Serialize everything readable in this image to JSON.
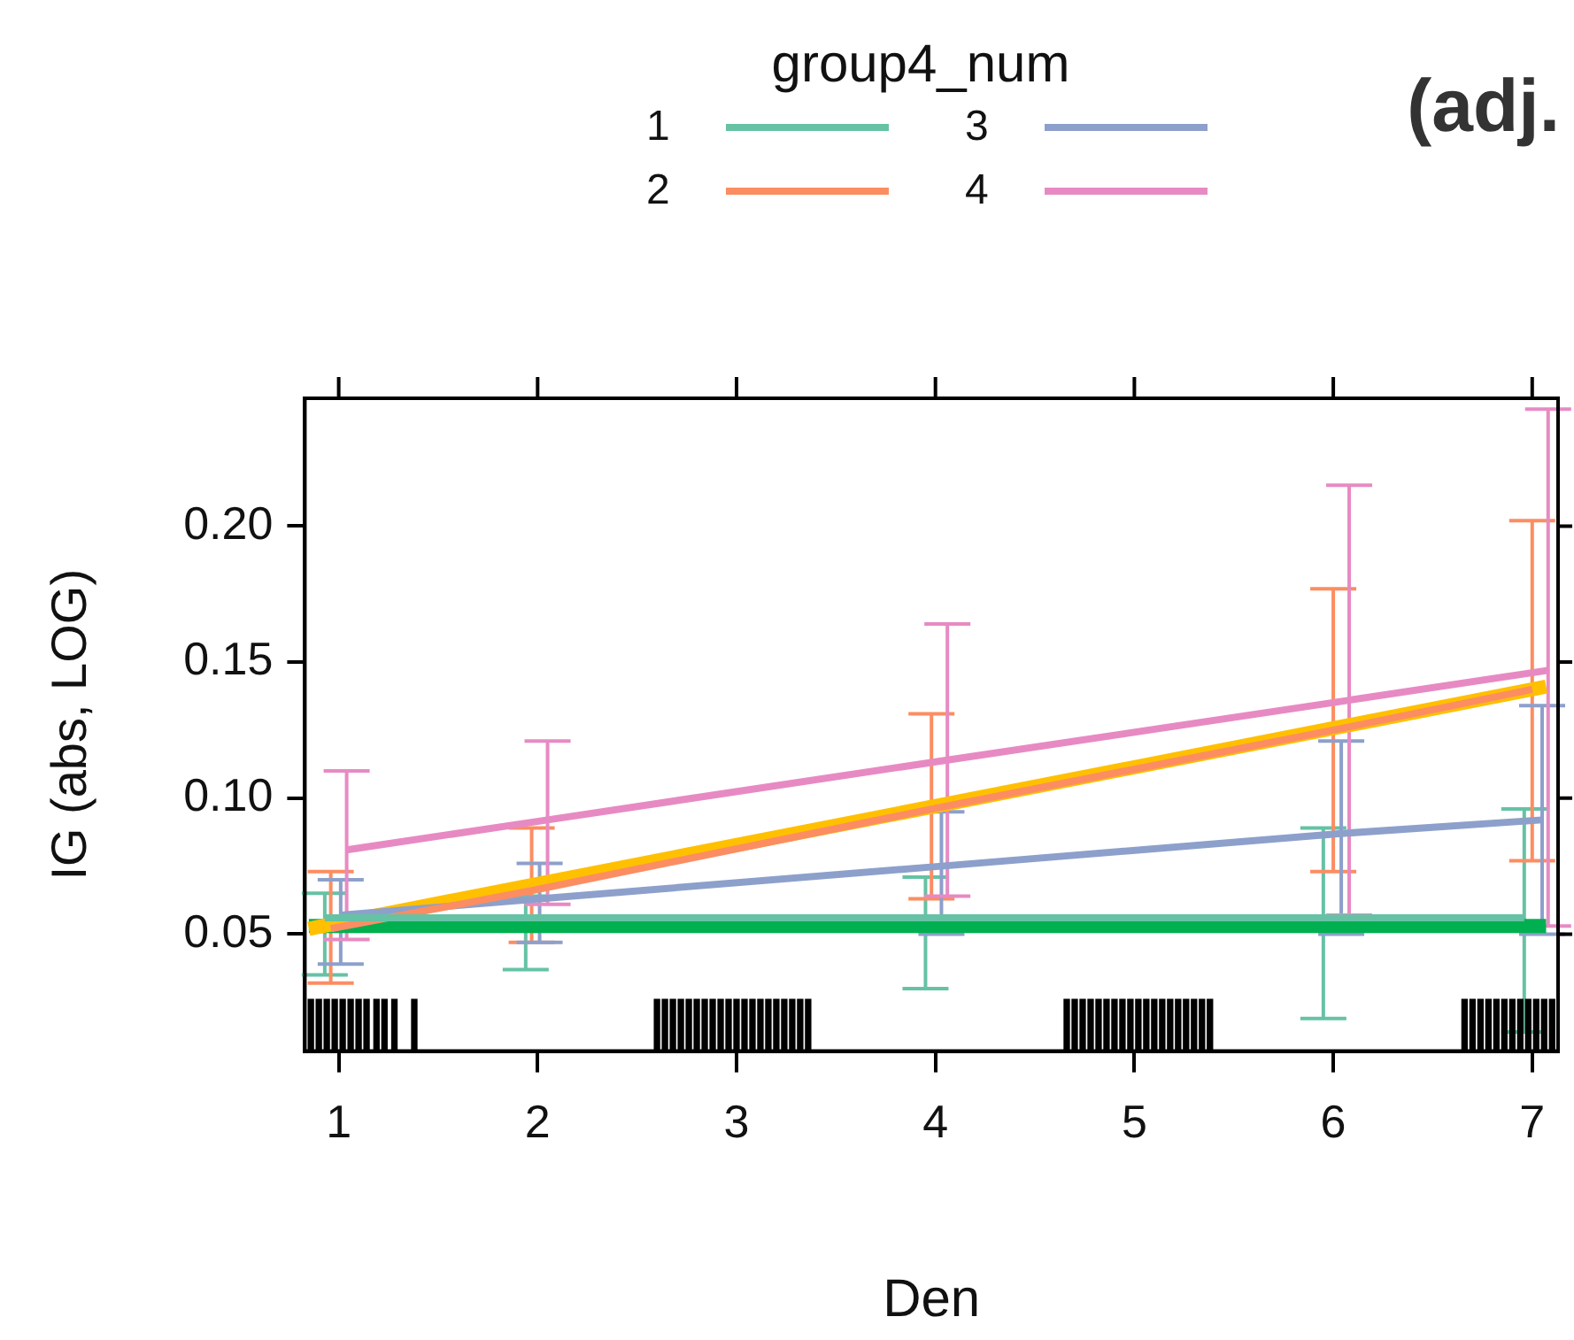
{
  "chart_data": {
    "type": "line",
    "xlabel": "Den",
    "ylabel": "IG (abs, LOG)",
    "legend_title": "group4_num",
    "legend": "top",
    "marker": "none",
    "annotations": [
      "(adj."
    ],
    "xlim": [
      0.83,
      7.13
    ],
    "xticks": [
      1,
      2,
      3,
      4,
      5,
      6,
      7
    ],
    "ylim": [
      0.007,
      0.247
    ],
    "yticks": [
      0.05,
      {
        "value": 0.1,
        "label": "0.10"
      },
      0.15,
      {
        "value": 0.2,
        "label": "0.20"
      }
    ],
    "series": [
      {
        "type": "line",
        "x": [
          0.85,
          7.07
        ],
        "values": [
          0.052,
          0.141
        ],
        "color": "#ffc000"
      },
      {
        "type": "line",
        "x": [
          0.85,
          7.07
        ],
        "values": [
          0.053,
          0.053
        ],
        "color": "#00b050"
      },
      {
        "type": "line",
        "name": "1",
        "color": "#66c2a5",
        "x": [
          0.93,
          1.94,
          3.95,
          5.95,
          6.96
        ],
        "values": [
          0.056,
          0.056,
          0.056,
          0.056,
          0.056
        ],
        "errors": [
          [
            0.035,
            0.065
          ],
          [
            0.037,
            0.064
          ],
          [
            0.03,
            0.071
          ],
          [
            0.019,
            0.089
          ],
          [
            0.014,
            0.096
          ]
        ]
      },
      {
        "type": "line",
        "name": "2",
        "color": "#fc8d62",
        "x": [
          0.96,
          1.97,
          3.98,
          6.0,
          7.0
        ],
        "values": [
          0.052,
          0.066,
          0.096,
          0.125,
          0.14
        ],
        "errors": [
          [
            0.032,
            0.073
          ],
          [
            0.047,
            0.089
          ],
          [
            0.063,
            0.131
          ],
          [
            0.073,
            0.177
          ],
          [
            0.077,
            0.202
          ]
        ]
      },
      {
        "type": "line",
        "name": "3",
        "color": "#8da0cb",
        "x": [
          1.01,
          2.01,
          4.03,
          6.04,
          7.05
        ],
        "values": [
          0.057,
          0.063,
          0.075,
          0.087,
          0.092
        ],
        "errors": [
          [
            0.039,
            0.07
          ],
          [
            0.047,
            0.076
          ],
          [
            0.05,
            0.095
          ],
          [
            0.05,
            0.121
          ],
          [
            0.05,
            0.134
          ]
        ]
      },
      {
        "type": "line",
        "name": "4",
        "color": "#e78ac3",
        "x": [
          1.04,
          2.05,
          4.06,
          6.08,
          7.08
        ],
        "values": [
          0.081,
          0.092,
          0.114,
          0.136,
          0.147
        ],
        "errors": [
          [
            0.048,
            0.11
          ],
          [
            0.061,
            0.121
          ],
          [
            0.064,
            0.164
          ],
          [
            0.057,
            0.215
          ],
          [
            0.053,
            0.243
          ]
        ]
      },
      {
        "type": "bar",
        "color": "#000000",
        "x": [
          0.86,
          0.9,
          0.94,
          0.98,
          1.02,
          1.06,
          1.1,
          1.14,
          1.19,
          1.23,
          1.28,
          1.38,
          2.6,
          2.64,
          2.68,
          2.72,
          2.76,
          2.8,
          2.84,
          2.88,
          2.92,
          2.96,
          3,
          3.04,
          3.08,
          3.12,
          3.16,
          3.2,
          3.24,
          3.28,
          3.32,
          3.36,
          4.66,
          4.7,
          4.74,
          4.78,
          4.82,
          4.86,
          4.9,
          4.94,
          4.98,
          5.02,
          5.06,
          5.1,
          5.14,
          5.18,
          5.22,
          5.26,
          5.3,
          5.34,
          5.38,
          6.66,
          6.7,
          6.74,
          6.78,
          6.82,
          6.86,
          6.9,
          6.94,
          6.98,
          7.02,
          7.06,
          7.1
        ],
        "values": [
          0.026,
          0.026,
          0.026,
          0.026,
          0.026,
          0.026,
          0.026,
          0.026,
          0.026,
          0.026,
          0.026,
          0.026,
          0.026,
          0.026,
          0.026,
          0.026,
          0.026,
          0.026,
          0.026,
          0.026,
          0.026,
          0.026,
          0.026,
          0.026,
          0.026,
          0.026,
          0.026,
          0.026,
          0.026,
          0.026,
          0.026,
          0.026,
          0.026,
          0.026,
          0.026,
          0.026,
          0.026,
          0.026,
          0.026,
          0.026,
          0.026,
          0.026,
          0.026,
          0.026,
          0.026,
          0.026,
          0.026,
          0.026,
          0.026,
          0.026,
          0.026,
          0.026,
          0.026,
          0.026,
          0.026,
          0.026,
          0.026,
          0.026,
          0.026,
          0.026,
          0.026,
          0.026,
          0.026
        ]
      }
    ]
  }
}
